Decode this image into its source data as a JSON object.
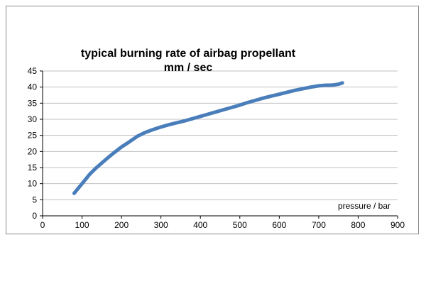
{
  "chart": {
    "title": "typical burning rate of airbag propellant",
    "subtitle": "mm / sec",
    "x_axis_label": "pressure / bar"
  },
  "chart_data": {
    "type": "line",
    "title": "typical burning rate of airbag propellant",
    "subtitle": "mm / sec",
    "xlabel": "pressure / bar",
    "ylabel": "mm / sec",
    "xlim": [
      0,
      900
    ],
    "ylim": [
      0,
      45
    ],
    "x_ticks": [
      0,
      100,
      200,
      300,
      400,
      500,
      600,
      700,
      800,
      900
    ],
    "y_ticks": [
      0,
      5,
      10,
      15,
      20,
      25,
      30,
      35,
      40,
      45
    ],
    "grid": "horizontal",
    "line_color": "#4a7ebb",
    "gridline_color": "#c0c0c0",
    "axis_color": "#000000",
    "series": [
      {
        "name": "burning rate",
        "x": [
          80,
          90,
          100,
          110,
          120,
          135,
          150,
          165,
          180,
          200,
          220,
          240,
          260,
          280,
          300,
          320,
          340,
          360,
          380,
          400,
          420,
          440,
          460,
          480,
          500,
          520,
          540,
          560,
          580,
          600,
          620,
          640,
          660,
          680,
          700,
          710,
          720,
          730,
          740,
          750,
          760
        ],
        "y": [
          7,
          8.5,
          10,
          11.5,
          13,
          14.8,
          16.4,
          18,
          19.5,
          21.4,
          23,
          24.7,
          25.9,
          26.8,
          27.6,
          28.3,
          28.9,
          29.5,
          30.2,
          30.9,
          31.6,
          32.3,
          33,
          33.7,
          34.4,
          35.2,
          35.9,
          36.6,
          37.2,
          37.8,
          38.4,
          39,
          39.5,
          40,
          40.4,
          40.5,
          40.6,
          40.6,
          40.7,
          40.9,
          41.3
        ]
      }
    ]
  }
}
